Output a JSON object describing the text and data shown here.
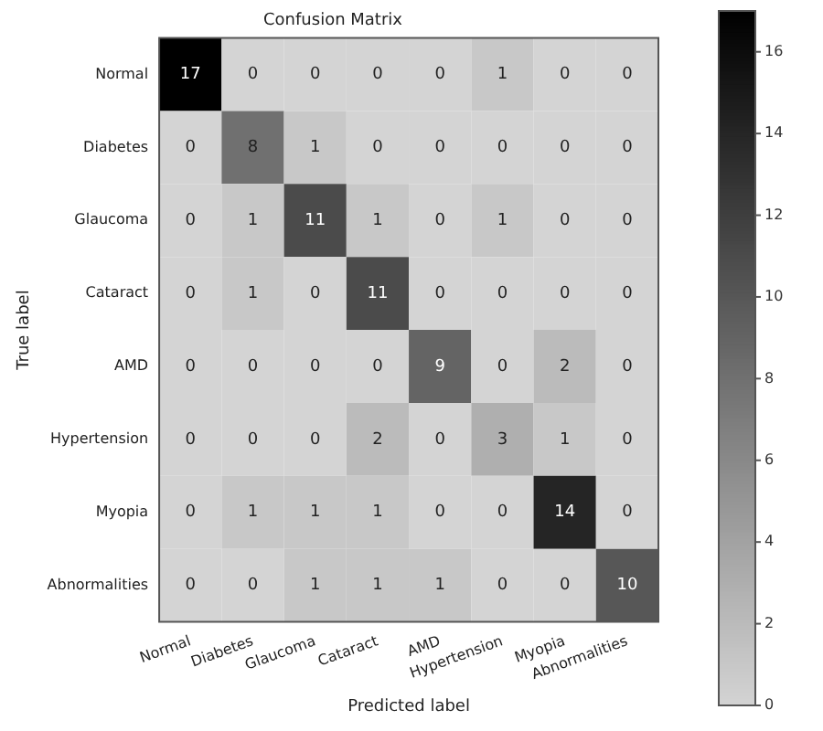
{
  "chart_data": {
    "type": "heatmap",
    "title": "Confusion Matrix",
    "xlabel": "Predicted label",
    "ylabel": "True label",
    "categories": [
      "Normal",
      "Diabetes",
      "Glaucoma",
      "Cataract",
      "AMD",
      "Hypertension",
      "Myopia",
      "Abnormalities"
    ],
    "y_categories": [
      "Normal",
      "Diabetes",
      "Glaucoma",
      "Cataract",
      "AMD",
      "Hypertension",
      "Myopia",
      "Abnormalities"
    ],
    "cells": [
      [
        17,
        0,
        0,
        0,
        0,
        1,
        0,
        0
      ],
      [
        0,
        8,
        1,
        0,
        0,
        0,
        0,
        0
      ],
      [
        0,
        1,
        11,
        1,
        0,
        1,
        0,
        0
      ],
      [
        0,
        1,
        0,
        11,
        0,
        0,
        0,
        0
      ],
      [
        0,
        0,
        0,
        0,
        9,
        0,
        2,
        0
      ],
      [
        0,
        0,
        0,
        2,
        0,
        3,
        1,
        0
      ],
      [
        0,
        1,
        1,
        1,
        0,
        0,
        14,
        0
      ],
      [
        0,
        0,
        1,
        1,
        1,
        0,
        0,
        10
      ]
    ],
    "data_labels": true,
    "clim": [
      0,
      17
    ],
    "cticks": [
      0,
      2,
      4,
      6,
      8,
      10,
      12,
      14,
      16
    ]
  }
}
